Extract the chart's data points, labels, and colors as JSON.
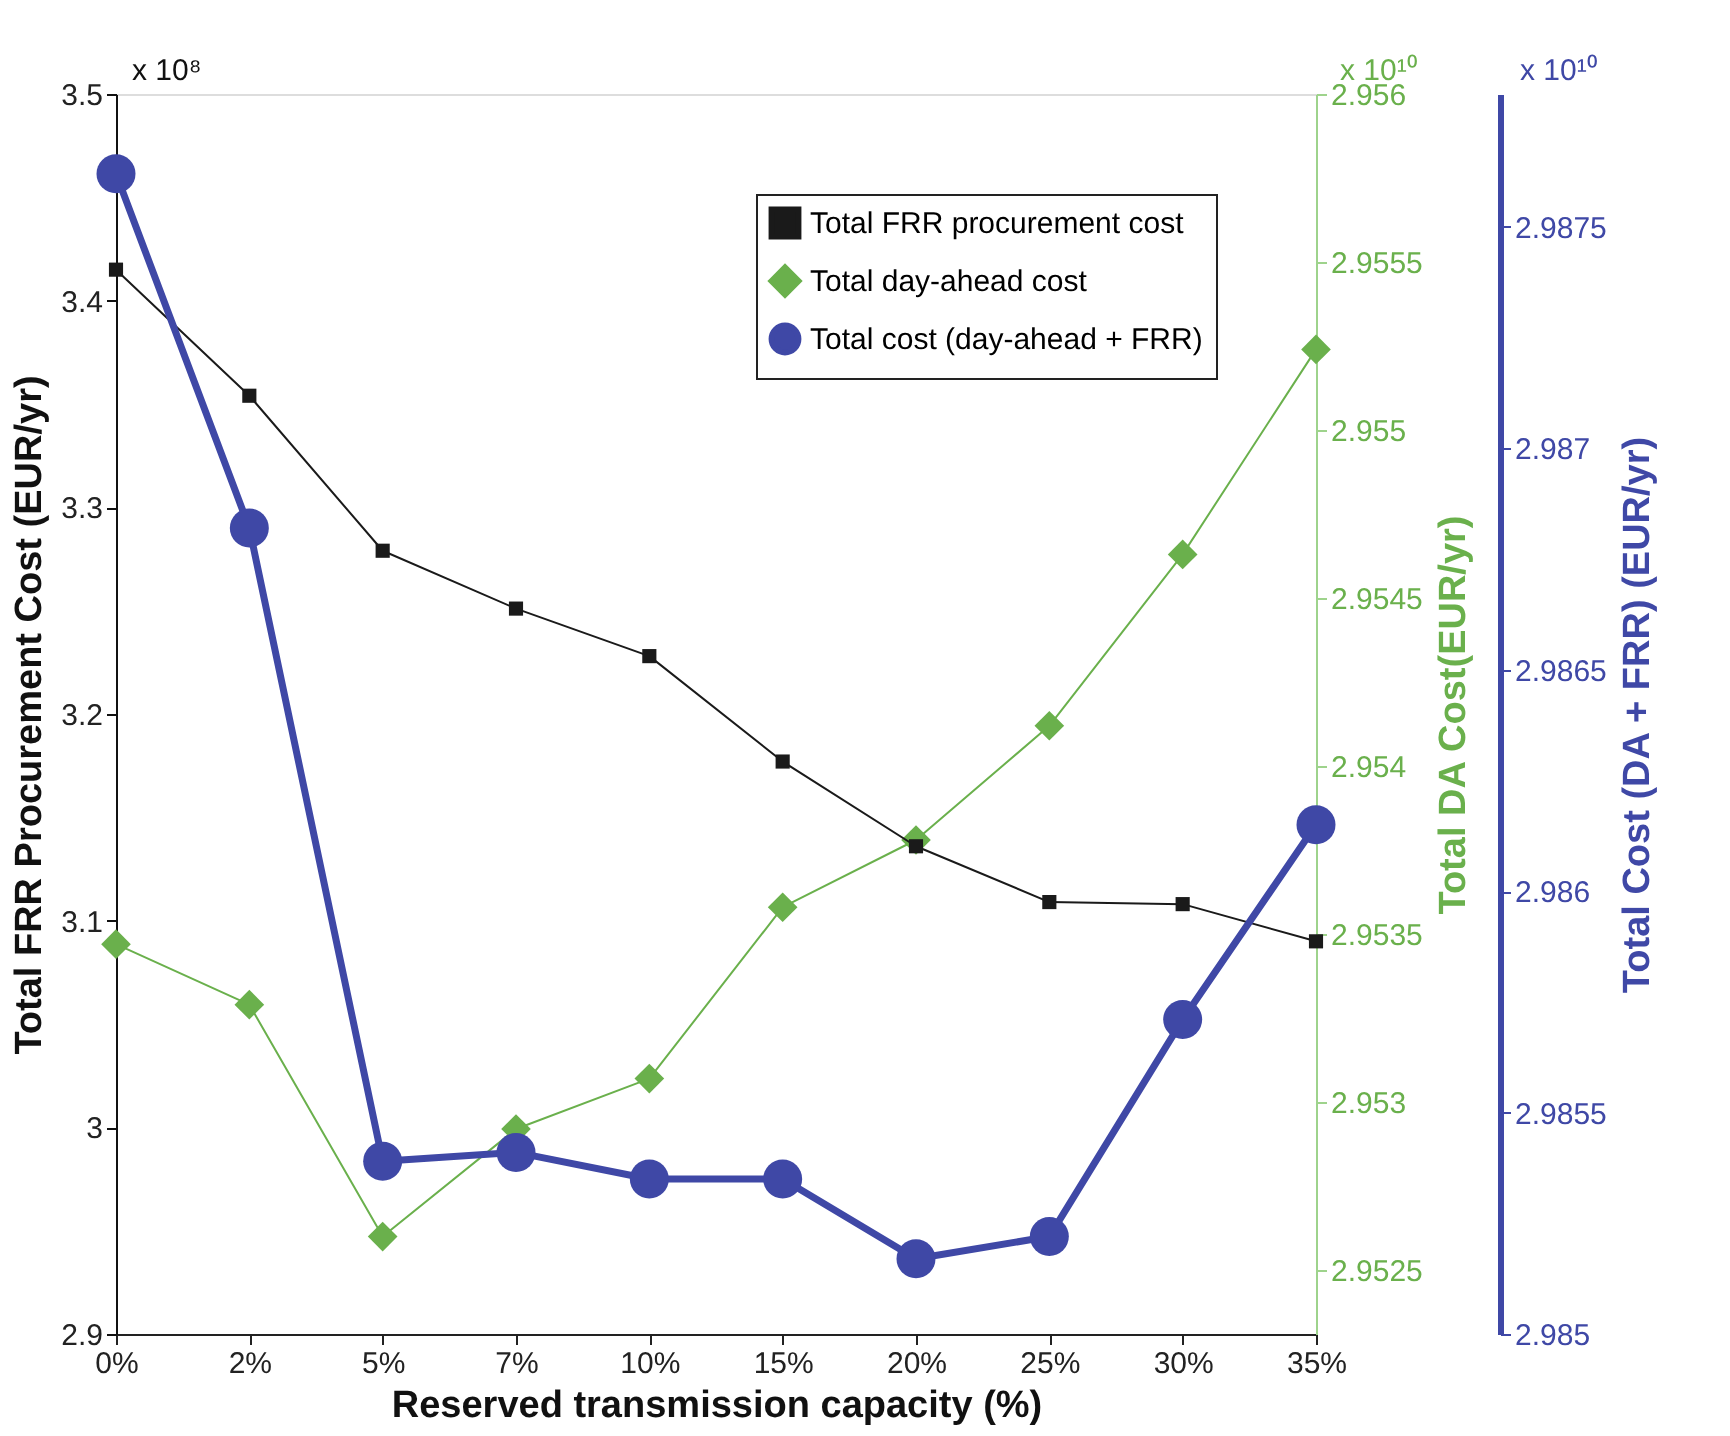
{
  "chart_data": {
    "type": "line",
    "xlabel": "Reserved transmission capacity (%)",
    "ylabel": "Total FRR Procurement Cost (EUR/yr)",
    "y2label": "Total DA Cost(EUR/yr)",
    "y3label": "Total Cost (DA + FRR) (EUR/yr)",
    "annotations": [
      "x 10⁸",
      "x 10¹⁰",
      "x 10¹⁰"
    ],
    "categories": [
      "0%",
      "2%",
      "5%",
      "7%",
      "10%",
      "15%",
      "20%",
      "25%",
      "30%",
      "35%"
    ],
    "series": [
      {
        "name": "Total FRR procurement cost",
        "color": "#1a1a1a",
        "marker": "square",
        "axis": "y",
        "values": [
          3.415,
          3.354,
          3.279,
          3.251,
          3.228,
          3.177,
          3.136,
          3.109,
          3.108,
          3.09
        ]
      },
      {
        "name": "Total day-ahead cost",
        "color": "#6ab04c",
        "marker": "diamond",
        "axis": "y2",
        "values": [
          2.95347,
          2.95329,
          2.9526,
          2.95292,
          2.95307,
          2.95358,
          2.95378,
          2.95412,
          2.95463,
          2.95524
        ]
      },
      {
        "name": "Total cost (day-ahead + FRR)",
        "color": "#3f48a6",
        "marker": "circle",
        "axis": "y3",
        "values": [
          2.98762,
          2.98682,
          2.98539,
          2.98541,
          2.98535,
          2.98535,
          2.98517,
          2.98522,
          2.98571,
          2.98615
        ]
      }
    ],
    "ylim": [
      2.9,
      3.5
    ],
    "yticks": [
      2.9,
      3.0,
      3.1,
      3.2,
      3.3,
      3.4,
      3.5
    ],
    "y2lim": [
      2.95231,
      2.956
    ],
    "y2ticks": [
      2.9525,
      2.953,
      2.9535,
      2.954,
      2.9545,
      2.955,
      2.9555,
      2.956
    ],
    "y3lim": [
      2.985,
      2.9878
    ],
    "y3ticks": [
      2.985,
      2.9855,
      2.986,
      2.9865,
      2.987,
      2.9875
    ],
    "grid": false,
    "legend": "top right",
    "line_style": "solid"
  }
}
